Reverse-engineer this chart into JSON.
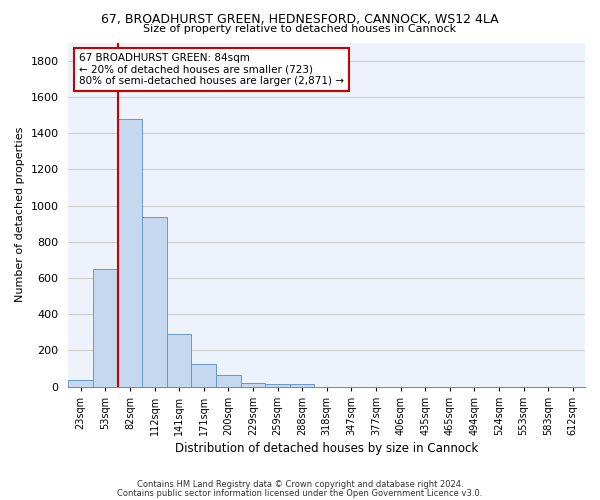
{
  "title1": "67, BROADHURST GREEN, HEDNESFORD, CANNOCK, WS12 4LA",
  "title2": "Size of property relative to detached houses in Cannock",
  "xlabel": "Distribution of detached houses by size in Cannock",
  "ylabel": "Number of detached properties",
  "bar_color": "#c5d8f0",
  "bar_edge_color": "#6699cc",
  "categories": [
    "23sqm",
    "53sqm",
    "82sqm",
    "112sqm",
    "141sqm",
    "171sqm",
    "200sqm",
    "229sqm",
    "259sqm",
    "288sqm",
    "318sqm",
    "347sqm",
    "377sqm",
    "406sqm",
    "435sqm",
    "465sqm",
    "494sqm",
    "524sqm",
    "553sqm",
    "583sqm",
    "612sqm"
  ],
  "values": [
    38,
    650,
    1480,
    935,
    290,
    125,
    62,
    22,
    15,
    12,
    0,
    0,
    0,
    0,
    0,
    0,
    0,
    0,
    0,
    0,
    0
  ],
  "bar_width": 1.0,
  "ylim": [
    0,
    1900
  ],
  "yticks": [
    0,
    200,
    400,
    600,
    800,
    1000,
    1200,
    1400,
    1600,
    1800
  ],
  "property_line_x": 1.5,
  "annotation_line1": "67 BROADHURST GREEN: 84sqm",
  "annotation_line2": "← 20% of detached houses are smaller (723)",
  "annotation_line3": "80% of semi-detached houses are larger (2,871) →",
  "annotation_box_color": "#ffffff",
  "annotation_box_edge": "#cc0000",
  "red_line_color": "#cc0000",
  "footnote1": "Contains HM Land Registry data © Crown copyright and database right 2024.",
  "footnote2": "Contains public sector information licensed under the Open Government Licence v3.0.",
  "grid_color": "#cccccc",
  "background_color": "#eef2fa"
}
